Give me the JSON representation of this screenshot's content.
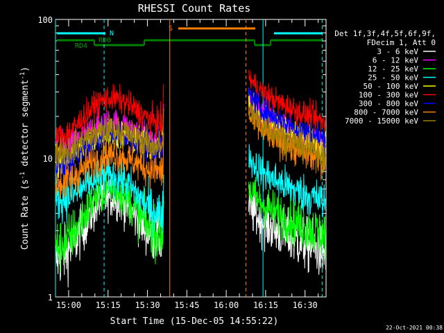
{
  "chart_data": {
    "type": "line",
    "title": "RHESSI Count Rates",
    "xlabel": "Start Time (15-Dec-05 14:55:22)",
    "ylabel": "Count Rate (s⁻¹ detector segment⁻¹)",
    "ylabel_main": "Count Rate (s",
    "ylabel_sup1": "-1",
    "ylabel_mid": " detector segment",
    "ylabel_sup2": "-1",
    "ylabel_end": ")",
    "yscale": "log",
    "ylim": [
      1,
      100
    ],
    "yticks": [
      "1",
      "10",
      "100"
    ],
    "xlim_min": [
      -5,
      98
    ],
    "xticks": [
      {
        "label": "15:00",
        "min": 0
      },
      {
        "label": "15:15",
        "min": 15
      },
      {
        "label": "15:30",
        "min": 30
      },
      {
        "label": "15:45",
        "min": 45
      },
      {
        "label": "16:00",
        "min": 60
      },
      {
        "label": "16:15",
        "min": 75
      },
      {
        "label": "16:30",
        "min": 90
      }
    ],
    "legend_header": [
      "Det 1f,3f,4f,5f,6f,9f,",
      "FDecim 1, Att 0"
    ],
    "series": [
      {
        "name": "3 - 6 keV",
        "color": "#ffffff",
        "start": 1.9,
        "peak": 5.2,
        "end_pre": 2.6,
        "end_post": 2.1
      },
      {
        "name": "6 - 12 keV",
        "color": "#ff00ff",
        "start": 11.5,
        "peak": 18.0,
        "end_pre": 13.0,
        "end_post": 12.5
      },
      {
        "name": "12 - 25 keV",
        "color": "#00ff00",
        "start": 2.3,
        "peak": 6.0,
        "end_pre": 2.8,
        "end_post": 2.8
      },
      {
        "name": "25 - 50 keV",
        "color": "#00ffff",
        "start": 5.0,
        "peak": 7.5,
        "end_pre": 4.0,
        "end_post": 4.8
      },
      {
        "name": "50 - 100 keV",
        "color": "#ffff00",
        "start": 9.5,
        "peak": 15.0,
        "end_pre": 12.0,
        "end_post": 12.0
      },
      {
        "name": "100 - 300 keV",
        "color": "#ff0000",
        "start": 14.0,
        "peak": 27.0,
        "end_pre": 18.0,
        "end_post": 18.0
      },
      {
        "name": "300 - 800 keV",
        "color": "#0000ff",
        "start": 9.0,
        "peak": 15.0,
        "end_pre": 11.5,
        "end_post": 13.5
      },
      {
        "name": "800 - 7000 keV",
        "color": "#ff8000",
        "start": 6.5,
        "peak": 10.5,
        "end_pre": 8.0,
        "end_post": 9.5
      },
      {
        "name": "7000 - 15000 keV",
        "color": "#a08000",
        "start": 11.0,
        "peak": 16.0,
        "end_pre": 12.0,
        "end_post": 10.5
      }
    ],
    "segments": {
      "pre_start": -5,
      "pre_end": 36,
      "post_start": 68.5,
      "post_end": 98
    },
    "markers": [
      {
        "label": "N",
        "color": "#00ffff"
      },
      {
        "label": "S",
        "color": "#ff8000"
      },
      {
        "label": "RD0",
        "color": "#008000"
      },
      {
        "label": "RD4",
        "color": "#008000"
      }
    ],
    "vlines": [
      {
        "min": -5,
        "color": "#00ffff",
        "dash": false
      },
      {
        "min": 13.5,
        "color": "#00ffff",
        "dash": true
      },
      {
        "min": 38.5,
        "color": "#ff8000",
        "dash": false
      },
      {
        "min": 67.5,
        "color": "#ff8000",
        "dash": true
      },
      {
        "min": 74,
        "color": "#00ffff",
        "dash": false
      },
      {
        "min": 96.5,
        "color": "#00ffff",
        "dash": true
      }
    ],
    "timestamp": "22-Oct-2021 00:38"
  }
}
